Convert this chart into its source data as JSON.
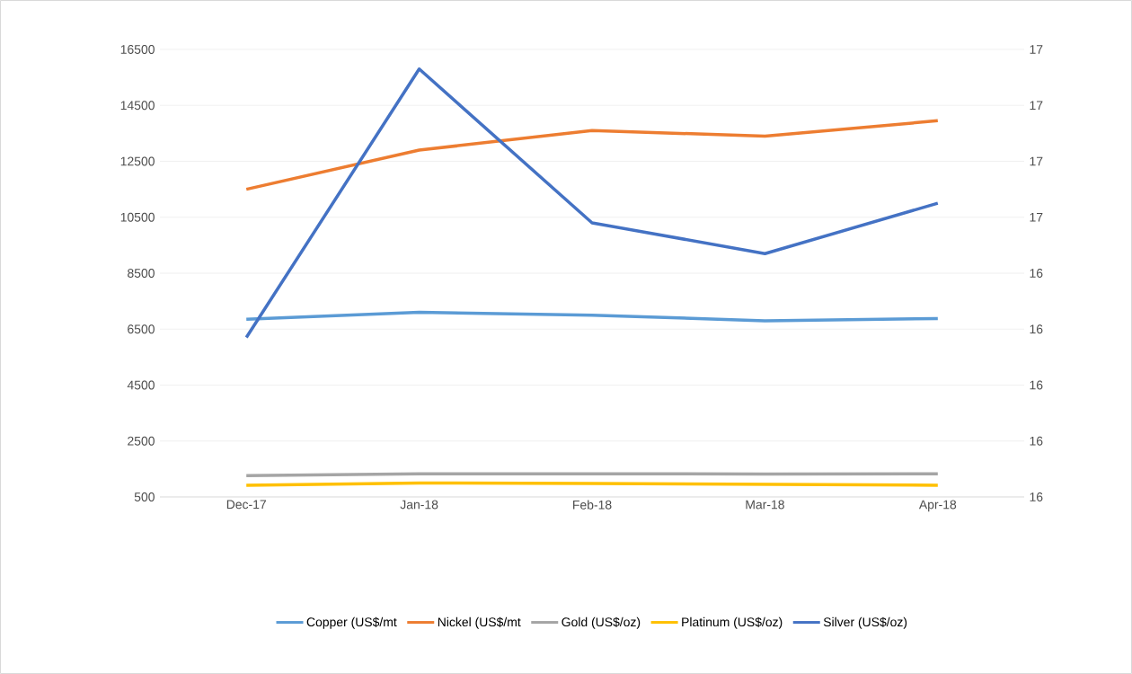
{
  "chart_data": {
    "type": "line",
    "categories": [
      "Dec-17",
      "Jan-18",
      "Feb-18",
      "Mar-18",
      "Apr-18"
    ],
    "series": [
      {
        "name": "Copper (US$/mt",
        "color": "#5b9bd5",
        "values": [
          6850,
          7100,
          7000,
          6800,
          6880
        ]
      },
      {
        "name": "Nickel (US$/mt",
        "color": "#ed7d31",
        "values": [
          11500,
          12900,
          13600,
          13400,
          13950
        ]
      },
      {
        "name": "Gold (US$/oz)",
        "color": "#a5a5a5",
        "values": [
          1260,
          1330,
          1330,
          1320,
          1330
        ]
      },
      {
        "name": "Platinum (US$/oz)",
        "color": "#ffc000",
        "values": [
          920,
          1000,
          980,
          950,
          920
        ]
      },
      {
        "name": "Silver (US$/oz)",
        "color": "#4472c4",
        "axis": "y2",
        "values": [
          16.285,
          16.765,
          16.49,
          16.435,
          16.525
        ]
      }
    ],
    "ylim": [
      500,
      16500
    ],
    "yticks": [
      500,
      2500,
      4500,
      6500,
      8500,
      10500,
      12500,
      14500,
      16500
    ],
    "y2lim": [
      16.0,
      16.8
    ],
    "y2ticks": [
      {
        "value": 16.0,
        "label": "16"
      },
      {
        "value": 16.1,
        "label": "16"
      },
      {
        "value": 16.2,
        "label": "16"
      },
      {
        "value": 16.3,
        "label": "16"
      },
      {
        "value": 16.4,
        "label": "16"
      },
      {
        "value": 16.5,
        "label": "17"
      },
      {
        "value": 16.6,
        "label": "17"
      },
      {
        "value": 16.7,
        "label": "17"
      },
      {
        "value": 16.8,
        "label": "17"
      }
    ],
    "grid": "y",
    "legend": "bottom",
    "marker": "none",
    "line_style": "solid"
  }
}
